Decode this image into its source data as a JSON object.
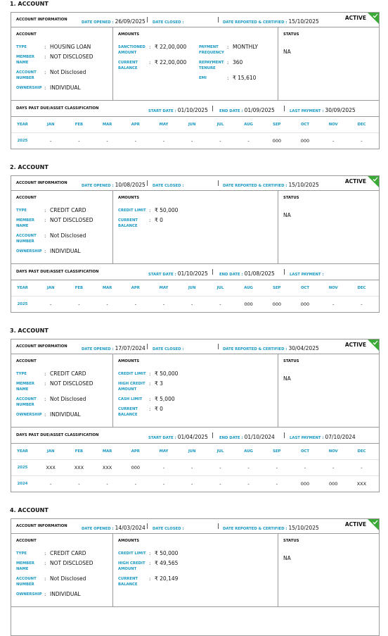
{
  "labels": {
    "account_information": "ACCOUNT INFORMATION",
    "date_opened": "DATE OPENED :",
    "date_closed": "DATE CLOSED :",
    "date_reported": "DATE REPORTED & CERTIFIED :",
    "account": "ACCOUNT",
    "amounts": "AMOUNTS",
    "status": "STATUS",
    "type": "TYPE",
    "member_name": "MEMBER NAME",
    "account_number": "ACCOUNT NUMBER",
    "ownership": "OWNERSHIP",
    "dpd_title": "DAYS PAST DUE/ASSET CLASSIFICATION",
    "start_date": "START DATE :",
    "end_date": "END DATE :",
    "last_payment": "LAST PAYMENT :",
    "colon": ":",
    "months": [
      "YEAR",
      "JAN",
      "FEB",
      "MAR",
      "APR",
      "MAY",
      "JUN",
      "JUL",
      "AUG",
      "SEP",
      "OCT",
      "NOV",
      "DEC"
    ]
  },
  "accounts": [
    {
      "heading": "1. ACCOUNT",
      "badge": "ACTIVE",
      "date_opened": "26/09/2025",
      "date_reported": "15/10/2025",
      "fields": {
        "type": "HOUSING LOAN",
        "member_name": "NOT DISCLOSED",
        "account_number": "Not Disclosed",
        "ownership": "INDIVIDUAL"
      },
      "amounts": [
        [
          {
            "label": "SANCTIONED AMOUNT",
            "value": "₹ 22,00,000"
          },
          {
            "label": "CURRENT BALANCE",
            "value": "₹ 22,00,000"
          }
        ],
        [
          {
            "label": "PAYMENT FREQUENCY",
            "value": "MONTHLY"
          },
          {
            "label": "REPAYMENT TENURE",
            "value": "360"
          },
          {
            "label": "EMI",
            "value": "₹ 15,610"
          }
        ]
      ],
      "status": "NA",
      "dpd": {
        "start_date": "01/10/2025",
        "end_date": "01/09/2025",
        "last_payment": "30/09/2025",
        "rows": [
          {
            "year": "2025",
            "values": [
              "-",
              "-",
              "-",
              "-",
              "-",
              "-",
              "-",
              "-",
              "000",
              "000",
              "-",
              "-"
            ]
          }
        ]
      }
    },
    {
      "heading": "2. ACCOUNT",
      "badge": "ACTIVE",
      "date_opened": "10/08/2025",
      "date_reported": "15/10/2025",
      "fields": {
        "type": "CREDIT CARD",
        "member_name": "NOT DISCLOSED",
        "account_number": "Not Disclosed",
        "ownership": "INDIVIDUAL"
      },
      "amounts": [
        [
          {
            "label": "CREDIT LIMIT",
            "value": "₹ 50,000"
          },
          {
            "label": "CURRENT BALANCE",
            "value": "₹ 0"
          }
        ]
      ],
      "status": "NA",
      "dpd": {
        "start_date": "01/10/2025",
        "end_date": "01/08/2025",
        "rows": [
          {
            "year": "2025",
            "values": [
              "-",
              "-",
              "-",
              "-",
              "-",
              "-",
              "-",
              "000",
              "000",
              "000",
              "-",
              "-"
            ]
          }
        ]
      }
    },
    {
      "heading": "3. ACCOUNT",
      "badge": "ACTIVE",
      "date_opened": "17/07/2024",
      "date_reported": "30/04/2025",
      "fields": {
        "type": "CREDIT CARD",
        "member_name": "NOT DISCLOSED",
        "account_number": "Not Disclosed",
        "ownership": "INDIVIDUAL"
      },
      "amounts": [
        [
          {
            "label": "CREDIT LIMIT",
            "value": "₹ 50,000"
          },
          {
            "label": "HIGH CREDIT AMOUNT",
            "value": "₹ 3"
          },
          {
            "label": "CASH LIMIT",
            "value": "₹ 5,000"
          },
          {
            "label": "CURRENT BALANCE",
            "value": "₹ 0"
          }
        ]
      ],
      "status": "NA",
      "dpd": {
        "start_date": "01/04/2025",
        "end_date": "01/10/2024",
        "last_payment": "07/10/2024",
        "rows": [
          {
            "year": "2025",
            "values": [
              "XXX",
              "XXX",
              "XXX",
              "000",
              "-",
              "-",
              "-",
              "-",
              "-",
              "-",
              "-",
              "-"
            ]
          },
          {
            "year": "2024",
            "values": [
              "-",
              "-",
              "-",
              "-",
              "-",
              "-",
              "-",
              "-",
              "-",
              "000",
              "000",
              "XXX"
            ]
          }
        ]
      }
    },
    {
      "heading": "4. ACCOUNT",
      "badge": "ACTIVE",
      "date_opened": "14/03/2024",
      "date_reported": "15/10/2025",
      "fields": {
        "type": "CREDIT CARD",
        "member_name": "NOT DISCLOSED",
        "account_number": "Not Disclosed",
        "ownership": "INDIVIDUAL"
      },
      "amounts": [
        [
          {
            "label": "CREDIT LIMIT",
            "value": "₹ 50,000"
          },
          {
            "label": "HIGH CREDIT AMOUNT",
            "value": "₹ 49,565"
          },
          {
            "label": "CURRENT BALANCE",
            "value": "₹ 20,149"
          }
        ]
      ],
      "status": "NA"
    }
  ]
}
